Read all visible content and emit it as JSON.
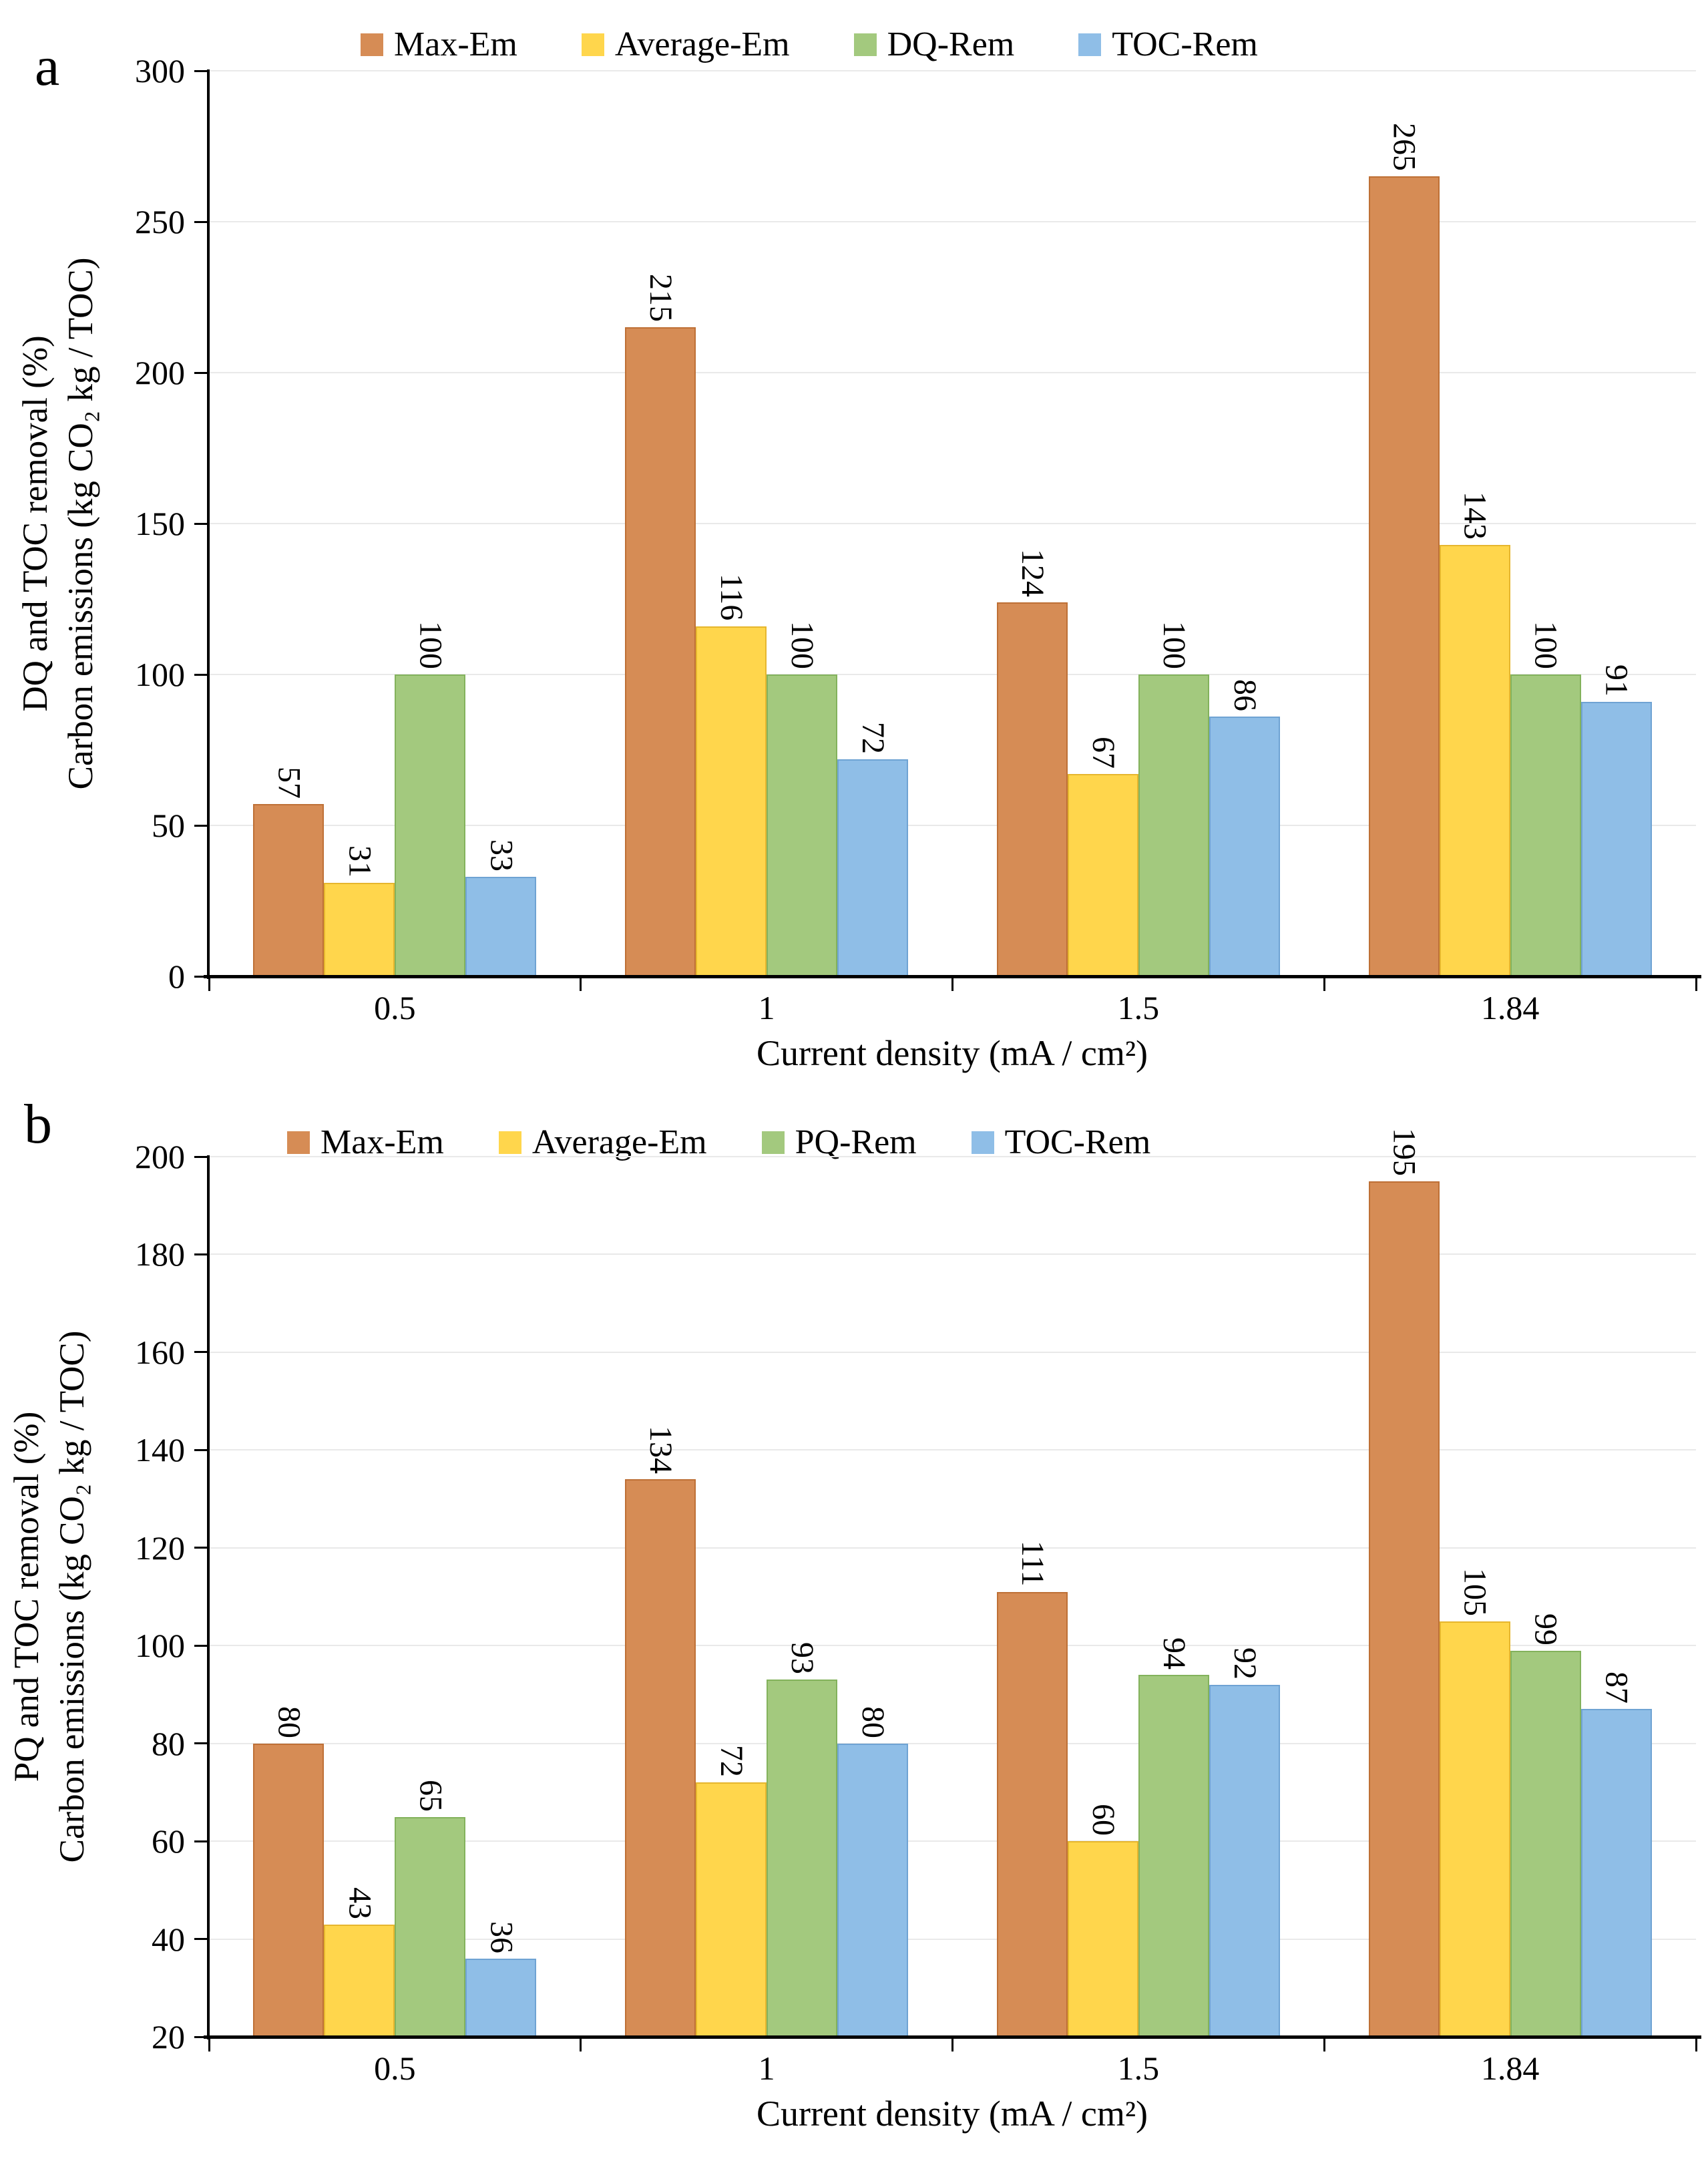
{
  "chart_data": [
    {
      "type": "bar",
      "panel_label": "a",
      "ylabel_line1": "DQ and TOC removal (%)",
      "ylabel_line2": "Carbon emissions (kg CO₂ kg / TOC)",
      "xlabel": "Current density (mA / cm²)",
      "categories": [
        "0.5",
        "1",
        "1.5",
        "1.84"
      ],
      "series": [
        {
          "name": "Max-Em",
          "color": "#D68C55",
          "border": "#BE7036",
          "values": [
            57,
            215,
            124,
            265
          ]
        },
        {
          "name": "Average-Em",
          "color": "#FFD64C",
          "border": "#E6B62E",
          "values": [
            31,
            116,
            67,
            143
          ]
        },
        {
          "name": "DQ-Rem",
          "color": "#A3C97E",
          "border": "#83B25C",
          "values": [
            100,
            100,
            100,
            100
          ]
        },
        {
          "name": "TOC-Rem",
          "color": "#8FBEE7",
          "border": "#6FA3D3",
          "values": [
            33,
            72,
            86,
            91
          ]
        }
      ],
      "ylim": [
        0,
        300
      ],
      "ystep": 50,
      "yticks": [
        "0",
        "50",
        "100",
        "150",
        "200",
        "250",
        "300"
      ],
      "grid": true,
      "legend_position": "top",
      "data_labels_rotated": true
    },
    {
      "type": "bar",
      "panel_label": "b",
      "ylabel_line1": "PQ and TOC removal (%)",
      "ylabel_line2": "Carbon emissions (kg CO₂ kg / TOC)",
      "xlabel": "Current density (mA / cm²)",
      "categories": [
        "0.5",
        "1",
        "1.5",
        "1.84"
      ],
      "series": [
        {
          "name": "Max-Em",
          "color": "#D68C55",
          "border": "#BE7036",
          "values": [
            80,
            134,
            111,
            195
          ]
        },
        {
          "name": "Average-Em",
          "color": "#FFD64C",
          "border": "#E6B62E",
          "values": [
            43,
            72,
            60,
            105
          ]
        },
        {
          "name": "PQ-Rem",
          "color": "#A3C97E",
          "border": "#83B25C",
          "values": [
            65,
            93,
            94,
            99
          ]
        },
        {
          "name": "TOC-Rem",
          "color": "#8FBEE7",
          "border": "#6FA3D3",
          "values": [
            36,
            80,
            92,
            87
          ]
        }
      ],
      "ylim": [
        20,
        200
      ],
      "ystep": 20,
      "yticks": [
        "20",
        "40",
        "60",
        "80",
        "100",
        "120",
        "140",
        "160",
        "180",
        "200"
      ],
      "grid": true,
      "legend_position": "top",
      "data_labels_rotated": true
    }
  ]
}
